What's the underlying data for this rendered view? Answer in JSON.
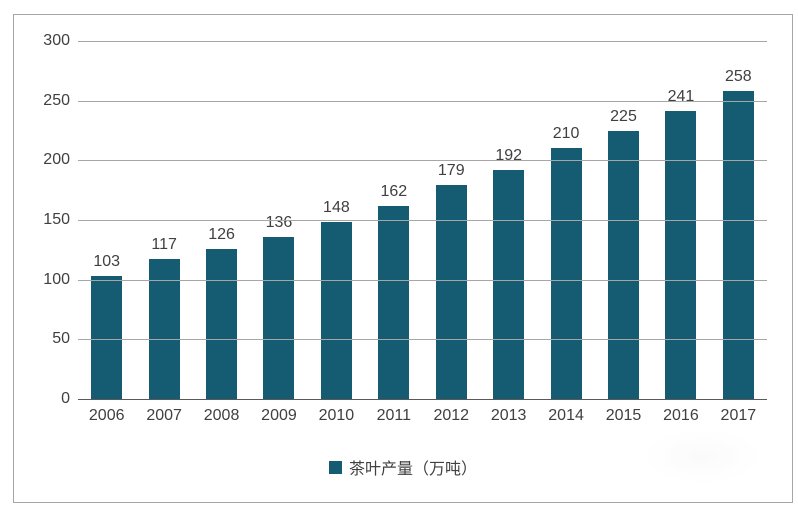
{
  "chart_data": {
    "type": "bar",
    "categories": [
      "2006",
      "2007",
      "2008",
      "2009",
      "2010",
      "2011",
      "2012",
      "2013",
      "2014",
      "2015",
      "2016",
      "2017"
    ],
    "values": [
      103,
      117,
      126,
      136,
      148,
      162,
      179,
      192,
      210,
      225,
      241,
      258
    ],
    "series_name": "茶叶产量（万吨）",
    "legend_label": "茶叶产量（万吨）",
    "legend_position": "bottom-center",
    "title": "",
    "xlabel": "",
    "ylabel": "",
    "ylim": [
      0,
      300
    ],
    "yticks": [
      0,
      50,
      100,
      150,
      200,
      250,
      300
    ],
    "grid": true,
    "data_labels": true,
    "colors": {
      "bar": "#155c72",
      "gridline": "#a6a6a6",
      "axis_line": "#595959",
      "text": "#404040",
      "frame_border": "#a6a6a6",
      "background": "#ffffff"
    }
  }
}
